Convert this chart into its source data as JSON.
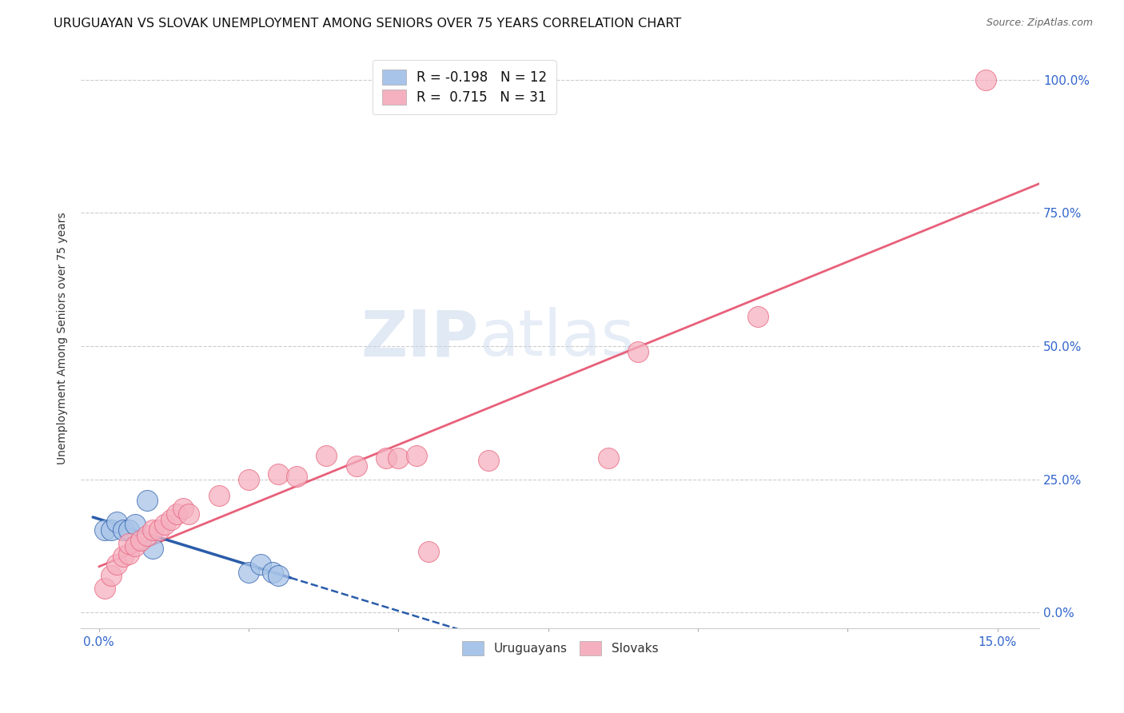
{
  "title": "URUGUAYAN VS SLOVAK UNEMPLOYMENT AMONG SENIORS OVER 75 YEARS CORRELATION CHART",
  "source": "Source: ZipAtlas.com",
  "ylabel": "Unemployment Among Seniors over 75 years",
  "right_ytick_labels": [
    "0.0%",
    "25.0%",
    "50.0%",
    "75.0%",
    "100.0%"
  ],
  "right_ytick_values": [
    0.0,
    0.25,
    0.5,
    0.75,
    1.0
  ],
  "legend_blue_label": "R = -0.198   N = 12",
  "legend_pink_label": "R =  0.715   N = 31",
  "legend_uruguayans": "Uruguayans",
  "legend_slovaks": "Slovaks",
  "blue_color": "#a8c4e8",
  "pink_color": "#f5b0c0",
  "blue_line_color": "#2a5caa",
  "pink_line_color": "#e8607a",
  "blue_scatter": [
    [
      0.001,
      0.155
    ],
    [
      0.002,
      0.155
    ],
    [
      0.003,
      0.17
    ],
    [
      0.004,
      0.155
    ],
    [
      0.005,
      0.155
    ],
    [
      0.006,
      0.165
    ],
    [
      0.008,
      0.21
    ],
    [
      0.009,
      0.12
    ],
    [
      0.025,
      0.075
    ],
    [
      0.027,
      0.09
    ],
    [
      0.029,
      0.075
    ],
    [
      0.03,
      0.07
    ]
  ],
  "pink_scatter": [
    [
      0.001,
      0.045
    ],
    [
      0.002,
      0.07
    ],
    [
      0.003,
      0.09
    ],
    [
      0.004,
      0.105
    ],
    [
      0.005,
      0.11
    ],
    [
      0.005,
      0.13
    ],
    [
      0.006,
      0.125
    ],
    [
      0.007,
      0.135
    ],
    [
      0.008,
      0.145
    ],
    [
      0.009,
      0.155
    ],
    [
      0.01,
      0.155
    ],
    [
      0.011,
      0.165
    ],
    [
      0.012,
      0.175
    ],
    [
      0.013,
      0.185
    ],
    [
      0.014,
      0.195
    ],
    [
      0.015,
      0.185
    ],
    [
      0.02,
      0.22
    ],
    [
      0.025,
      0.25
    ],
    [
      0.03,
      0.26
    ],
    [
      0.033,
      0.255
    ],
    [
      0.038,
      0.295
    ],
    [
      0.043,
      0.275
    ],
    [
      0.048,
      0.29
    ],
    [
      0.05,
      0.29
    ],
    [
      0.053,
      0.295
    ],
    [
      0.055,
      0.115
    ],
    [
      0.065,
      0.285
    ],
    [
      0.085,
      0.29
    ],
    [
      0.09,
      0.49
    ],
    [
      0.11,
      0.555
    ],
    [
      0.148,
      1.0
    ]
  ],
  "xmin": -0.003,
  "xmax": 0.157,
  "ymin": -0.03,
  "ymax": 1.06,
  "xtick_positions": [
    0.0,
    0.025,
    0.05,
    0.075,
    0.1,
    0.125,
    0.15
  ],
  "watermark_zip": "ZIP",
  "watermark_atlas": "atlas",
  "background_color": "#ffffff",
  "title_fontsize": 11.5,
  "source_fontsize": 9,
  "axis_label_fontsize": 10,
  "tick_fontsize": 11
}
